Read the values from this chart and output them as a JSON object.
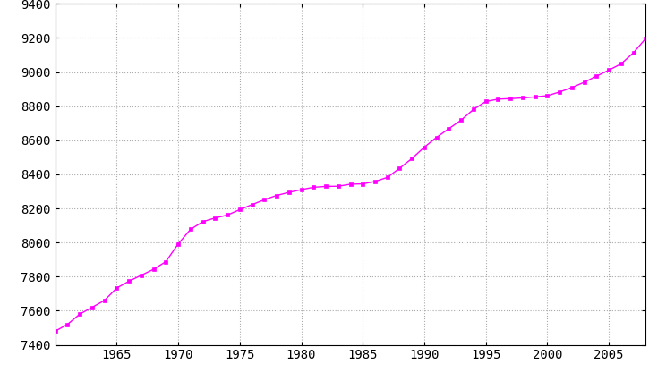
{
  "years": [
    1960,
    1961,
    1962,
    1963,
    1964,
    1965,
    1966,
    1967,
    1968,
    1969,
    1970,
    1971,
    1972,
    1973,
    1974,
    1975,
    1976,
    1977,
    1978,
    1979,
    1980,
    1981,
    1982,
    1983,
    1984,
    1985,
    1986,
    1987,
    1988,
    1989,
    1990,
    1991,
    1992,
    1993,
    1994,
    1995,
    1996,
    1997,
    1998,
    1999,
    2000,
    2001,
    2002,
    2003,
    2004,
    2005,
    2006,
    2007,
    2008
  ],
  "population": [
    7480,
    7520,
    7580,
    7620,
    7660,
    7733,
    7773,
    7808,
    7843,
    7888,
    7992,
    8077,
    8122,
    8144,
    8161,
    8193,
    8222,
    8251,
    8276,
    8294,
    8310,
    8324,
    8329,
    8330,
    8342,
    8344,
    8358,
    8382,
    8436,
    8493,
    8559,
    8617,
    8668,
    8718,
    8781,
    8827,
    8841,
    8844,
    8848,
    8854,
    8861,
    8883,
    8909,
    8940,
    8976,
    9011,
    9048,
    9113,
    9197
  ],
  "line_color": "#FF00FF",
  "marker_color": "#FF00FF",
  "marker": "s",
  "marker_size": 3.5,
  "line_width": 1.0,
  "xlim": [
    1960,
    2008
  ],
  "ylim": [
    7400,
    9400
  ],
  "xticks": [
    1965,
    1970,
    1975,
    1980,
    1985,
    1990,
    1995,
    2000,
    2005
  ],
  "yticks": [
    7400,
    7600,
    7800,
    8000,
    8200,
    8400,
    8600,
    8800,
    9000,
    9200,
    9400
  ],
  "grid_color": "#aaaaaa",
  "bg_color": "#ffffff",
  "tick_label_color": "#000000",
  "tick_fontsize": 10,
  "spine_color": "#000000"
}
